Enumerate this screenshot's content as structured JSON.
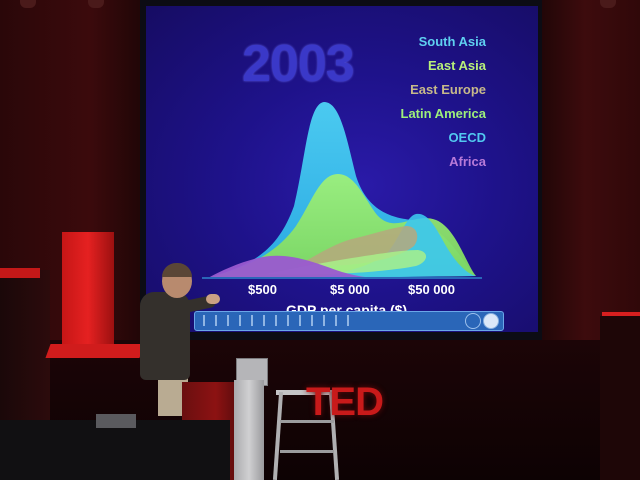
{
  "slide": {
    "year": "2003",
    "legend": [
      {
        "label": "South Asia",
        "color": "#5fd0f0"
      },
      {
        "label": "East Asia",
        "color": "#b8f07a"
      },
      {
        "label": "East Europe",
        "color": "#c7b98a"
      },
      {
        "label": "Latin America",
        "color": "#9ef07a"
      },
      {
        "label": "OECD",
        "color": "#52c8f0"
      },
      {
        "label": "Africa",
        "color": "#b77ad8"
      }
    ],
    "axis": {
      "ticks": [
        "$500",
        "$5 000",
        "$50 000"
      ],
      "title": "GDP per capita ($)"
    }
  },
  "stage": {
    "logo": "TED"
  },
  "colors": {
    "screen_bg": "#1e128a",
    "year_text": "#3a38c8",
    "ted_red": "#c81a1a"
  }
}
